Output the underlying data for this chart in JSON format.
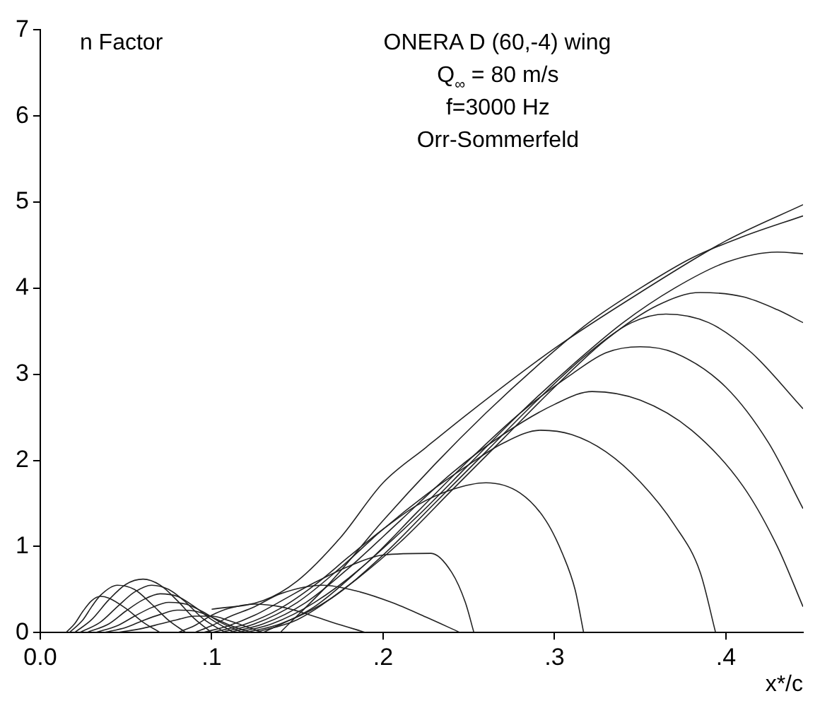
{
  "chart_data": {
    "type": "line",
    "title": "ONERA D (60,-4) wing",
    "ylabel": "n Factor",
    "xlabel": "x*/c",
    "annotations": [
      "Q$_{∞}$ = 80 m/s",
      "f=3000 Hz",
      "Orr-Sommerfeld"
    ],
    "xlim": [
      0,
      0.445
    ],
    "ylim": [
      0,
      7
    ],
    "xticks": [
      {
        "value": 0,
        "label": "0.0"
      },
      {
        "value": 0.1,
        "label": ".1"
      },
      {
        "value": 0.2,
        "label": ".2"
      },
      {
        "value": 0.3,
        "label": ".3"
      },
      {
        "value": 0.4,
        "label": ".4"
      }
    ],
    "yticks": [
      0,
      1,
      2,
      3,
      4,
      5,
      6,
      7
    ],
    "legend": false,
    "marker": "none",
    "line_style": "solid",
    "series": [
      {
        "color": "#222222",
        "x": [
          0.015,
          0.02,
          0.025,
          0.03,
          0.035,
          0.04,
          0.05,
          0.06,
          0.07
        ],
        "values": [
          0,
          0.1,
          0.25,
          0.37,
          0.42,
          0.4,
          0.28,
          0.12,
          0
        ]
      },
      {
        "color": "#222222",
        "x": [
          0.017,
          0.025,
          0.03,
          0.035,
          0.045,
          0.055,
          0.065,
          0.075,
          0.085
        ],
        "values": [
          0,
          0.15,
          0.3,
          0.43,
          0.55,
          0.5,
          0.33,
          0.14,
          0
        ]
      },
      {
        "color": "#222222",
        "x": [
          0.02,
          0.03,
          0.04,
          0.05,
          0.06,
          0.07,
          0.08,
          0.09,
          0.1
        ],
        "values": [
          0,
          0.15,
          0.38,
          0.56,
          0.62,
          0.55,
          0.37,
          0.16,
          0
        ]
      },
      {
        "color": "#222222",
        "x": [
          0.023,
          0.035,
          0.045,
          0.055,
          0.065,
          0.075,
          0.085,
          0.095,
          0.108
        ],
        "values": [
          0,
          0.12,
          0.3,
          0.47,
          0.55,
          0.5,
          0.35,
          0.16,
          0
        ]
      },
      {
        "color": "#222222",
        "x": [
          0.027,
          0.04,
          0.05,
          0.06,
          0.07,
          0.08,
          0.09,
          0.1,
          0.113
        ],
        "values": [
          0,
          0.1,
          0.25,
          0.38,
          0.45,
          0.42,
          0.3,
          0.15,
          0
        ]
      },
      {
        "color": "#222222",
        "x": [
          0.032,
          0.045,
          0.055,
          0.065,
          0.075,
          0.085,
          0.095,
          0.105,
          0.118
        ],
        "values": [
          0,
          0.08,
          0.19,
          0.29,
          0.35,
          0.33,
          0.24,
          0.12,
          0
        ]
      },
      {
        "color": "#222222",
        "x": [
          0.037,
          0.05,
          0.06,
          0.07,
          0.08,
          0.09,
          0.1,
          0.11,
          0.123
        ],
        "values": [
          0,
          0.06,
          0.14,
          0.21,
          0.26,
          0.25,
          0.18,
          0.09,
          0
        ]
      },
      {
        "color": "#222222",
        "x": [
          0.045,
          0.06,
          0.07,
          0.08,
          0.09,
          0.1,
          0.11,
          0.12,
          0.13
        ],
        "values": [
          0,
          0.05,
          0.1,
          0.15,
          0.19,
          0.19,
          0.14,
          0.07,
          0
        ]
      },
      {
        "color": "#222222",
        "x": [
          0.08,
          0.09,
          0.1,
          0.11,
          0.125,
          0.14,
          0.155,
          0.17,
          0.19
        ],
        "values": [
          0,
          0.08,
          0.2,
          0.28,
          0.33,
          0.3,
          0.22,
          0.12,
          0
        ]
      },
      {
        "color": "#222222",
        "x": [
          0.09,
          0.1,
          0.11,
          0.125,
          0.14,
          0.165,
          0.185,
          0.205,
          0.225,
          0.245
        ],
        "values": [
          0,
          0.08,
          0.18,
          0.3,
          0.45,
          0.55,
          0.48,
          0.35,
          0.18,
          0
        ]
      },
      {
        "color": "#222222",
        "x": [
          0.095,
          0.11,
          0.125,
          0.14,
          0.16,
          0.18,
          0.2,
          0.228,
          0.24,
          0.248,
          0.253
        ],
        "values": [
          0,
          0.08,
          0.2,
          0.36,
          0.58,
          0.77,
          0.9,
          0.92,
          0.7,
          0.35,
          0
        ]
      },
      {
        "color": "#222222",
        "x": [
          0.1,
          0.12,
          0.14,
          0.16,
          0.18,
          0.2,
          0.22,
          0.24,
          0.26,
          0.28,
          0.295,
          0.305,
          0.312,
          0.317
        ],
        "values": [
          0,
          0.1,
          0.28,
          0.55,
          0.88,
          1.2,
          1.48,
          1.66,
          1.74,
          1.62,
          1.3,
          0.9,
          0.5,
          0
        ]
      },
      {
        "color": "#222222",
        "x": [
          0.105,
          0.125,
          0.15,
          0.175,
          0.2,
          0.225,
          0.25,
          0.27,
          0.292,
          0.31,
          0.33,
          0.35,
          0.37,
          0.385,
          0.394
        ],
        "values": [
          0,
          0.1,
          0.35,
          0.75,
          1.2,
          1.6,
          1.95,
          2.2,
          2.35,
          2.3,
          2.1,
          1.75,
          1.25,
          0.7,
          0
        ]
      },
      {
        "color": "#222222",
        "x": [
          0.11,
          0.13,
          0.155,
          0.18,
          0.21,
          0.24,
          0.27,
          0.3,
          0.322,
          0.35,
          0.38,
          0.41,
          0.43,
          0.445
        ],
        "values": [
          0,
          0.1,
          0.35,
          0.75,
          1.3,
          1.85,
          2.3,
          2.65,
          2.8,
          2.7,
          2.35,
          1.7,
          1.0,
          0.3
        ]
      },
      {
        "color": "#222222",
        "x": [
          0.115,
          0.135,
          0.16,
          0.19,
          0.22,
          0.25,
          0.28,
          0.31,
          0.33,
          0.35,
          0.37,
          0.4,
          0.425,
          0.445
        ],
        "values": [
          0,
          0.1,
          0.35,
          0.8,
          1.4,
          2.0,
          2.55,
          3.0,
          3.25,
          3.32,
          3.25,
          2.85,
          2.2,
          1.44
        ]
      },
      {
        "color": "#222222",
        "x": [
          0.12,
          0.14,
          0.17,
          0.2,
          0.23,
          0.26,
          0.29,
          0.32,
          0.345,
          0.365,
          0.39,
          0.415,
          0.445
        ],
        "values": [
          0,
          0.1,
          0.4,
          0.9,
          1.5,
          2.1,
          2.7,
          3.25,
          3.6,
          3.7,
          3.6,
          3.25,
          2.6
        ]
      },
      {
        "color": "#222222",
        "x": [
          0.125,
          0.15,
          0.18,
          0.21,
          0.24,
          0.27,
          0.3,
          0.33,
          0.36,
          0.385,
          0.41,
          0.43,
          0.445
        ],
        "values": [
          0,
          0.15,
          0.55,
          1.05,
          1.65,
          2.25,
          2.85,
          3.4,
          3.8,
          3.95,
          3.9,
          3.75,
          3.6
        ]
      },
      {
        "color": "#222222",
        "x": [
          0.13,
          0.16,
          0.19,
          0.22,
          0.25,
          0.28,
          0.31,
          0.34,
          0.37,
          0.4,
          0.43,
          0.445
        ],
        "values": [
          0,
          0.3,
          0.8,
          1.35,
          1.95,
          2.55,
          3.1,
          3.6,
          4.0,
          4.3,
          4.42,
          4.4
        ]
      },
      {
        "color": "#222222",
        "x": [
          0.14,
          0.17,
          0.2,
          0.23,
          0.26,
          0.29,
          0.32,
          0.35,
          0.38,
          0.41,
          0.445
        ],
        "values": [
          0,
          0.6,
          1.3,
          1.95,
          2.55,
          3.1,
          3.6,
          4.0,
          4.35,
          4.6,
          4.84
        ]
      },
      {
        "color": "#222222",
        "x": [
          0.1,
          0.13,
          0.15,
          0.175,
          0.2,
          0.225,
          0.25,
          0.3,
          0.35,
          0.4,
          0.445
        ],
        "values": [
          0.27,
          0.37,
          0.6,
          1.1,
          1.74,
          2.15,
          2.55,
          3.3,
          3.95,
          4.55,
          4.97
        ]
      }
    ]
  }
}
